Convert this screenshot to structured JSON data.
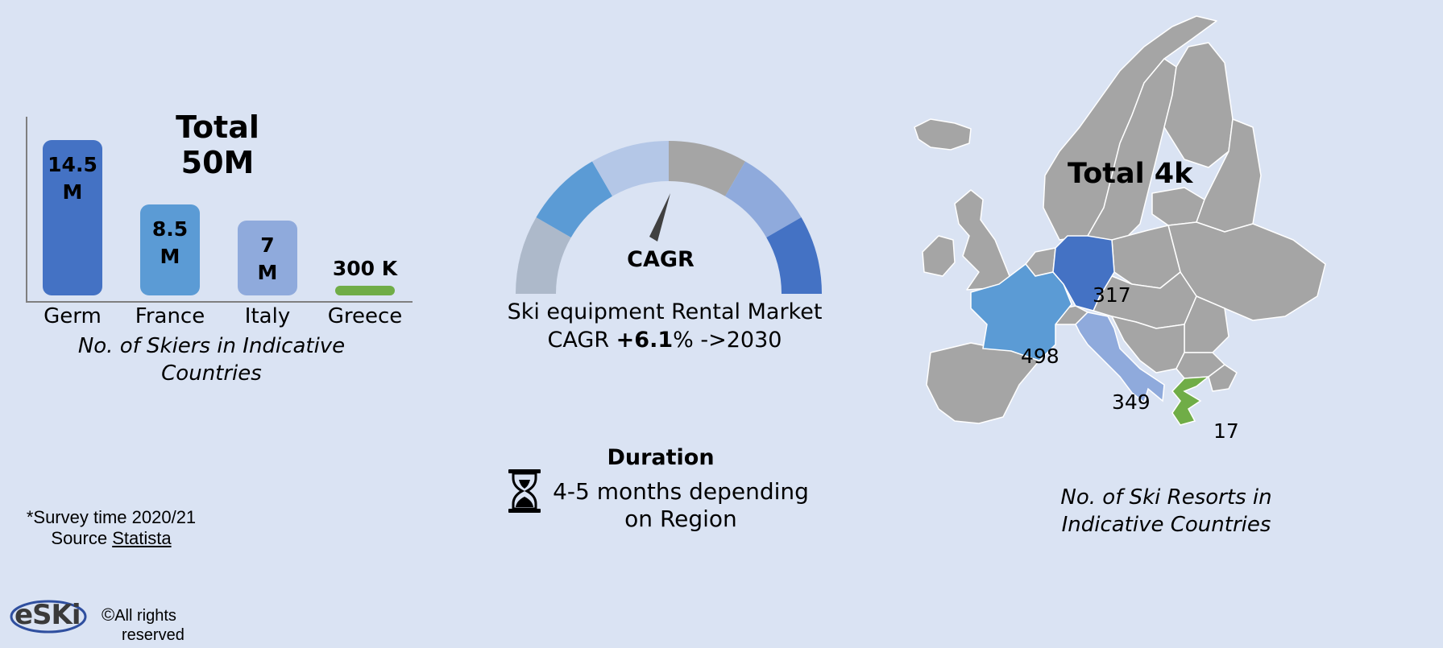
{
  "skiers_chart": {
    "title": "Total 50M",
    "caption": "No. of Skiers in Indicative Countries"
  },
  "chart_data": [
    {
      "type": "bar",
      "title": "Total 50M",
      "caption": "No. of Skiers in Indicative Countries",
      "categories": [
        "Germ",
        "France",
        "Italy",
        "Greece"
      ],
      "values": [
        14.5,
        8.5,
        7,
        0.3
      ],
      "unit": "M",
      "data_labels": [
        [
          "14.5",
          "M"
        ],
        [
          "8.5",
          "M"
        ],
        [
          "7",
          "M"
        ],
        [
          "300 K"
        ]
      ],
      "colors": [
        "#4472c4",
        "#5b9bd5",
        "#8faadc",
        "#70ad47"
      ],
      "ylim": [
        0,
        15
      ]
    },
    {
      "type": "choropleth",
      "title": "Total 4k",
      "caption": "No. of Ski Resorts in Indicative Countries",
      "regions": [
        "France",
        "Germany",
        "Italy",
        "Greece"
      ],
      "values": [
        498,
        317,
        349,
        17
      ],
      "colors": {
        "France": "#5b9bd5",
        "Germany": "#4472c4",
        "Italy": "#8faadc",
        "Greece": "#70ad47",
        "other": "#a5a5a5"
      }
    }
  ],
  "gauge": {
    "label": "CAGR",
    "caption_line1": "Ski equipment Rental Market",
    "caption_prefix": "CAGR ",
    "caption_value": "+6.1",
    "caption_suffix": "% ->2030",
    "segment_colors": [
      "#adb9ca",
      "#5b9bd5",
      "#b4c7e7",
      "#a5a5a5",
      "#8faadc",
      "#4472c4"
    ],
    "needle_color": "#404040"
  },
  "duration": {
    "icon": "hourglass-icon",
    "title": "Duration",
    "text_line1": "4-5 months depending",
    "text_line2": "on Region"
  },
  "map": {
    "title": "Total 4k",
    "caption": "No. of Ski Resorts in Indicative Countries",
    "labels": {
      "france": "498",
      "germany": "317",
      "italy": "349",
      "greece": "17"
    }
  },
  "footer": {
    "survey": "*Survey time 2020/21",
    "source_prefix": "Source ",
    "source_link": "Statista",
    "logo_text": "eSKi",
    "copyright_symbol": "©",
    "rights_line1": "All rights",
    "rights_line2": "reserved"
  }
}
